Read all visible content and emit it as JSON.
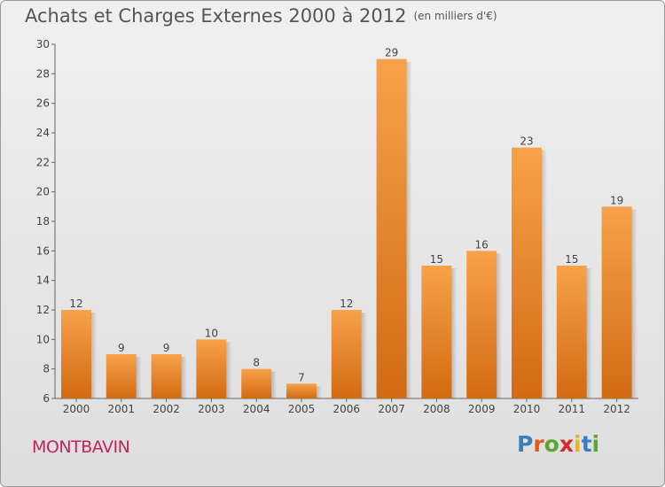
{
  "header": {
    "title": "Achats et Charges Externes 2000 à 2012",
    "unit": "(en milliers d'€)"
  },
  "footer": {
    "city": "MONTBAVIN",
    "logo": "Proxiti"
  },
  "colors": {
    "bar": "#f0892e",
    "city": "#c4245a"
  },
  "chart_data": {
    "type": "bar",
    "title": "Achats et Charges Externes 2000 à 2012",
    "subtitle": "(en milliers d'€)",
    "categories": [
      "2000",
      "2001",
      "2002",
      "2003",
      "2004",
      "2005",
      "2006",
      "2007",
      "2008",
      "2009",
      "2010",
      "2011",
      "2012"
    ],
    "values": [
      12,
      9,
      9,
      10,
      8,
      7,
      12,
      29,
      15,
      16,
      23,
      15,
      19
    ],
    "ylim": [
      6,
      30
    ],
    "yticks": [
      6,
      8,
      10,
      12,
      14,
      16,
      18,
      20,
      22,
      24,
      26,
      28,
      30
    ],
    "grid": false
  }
}
